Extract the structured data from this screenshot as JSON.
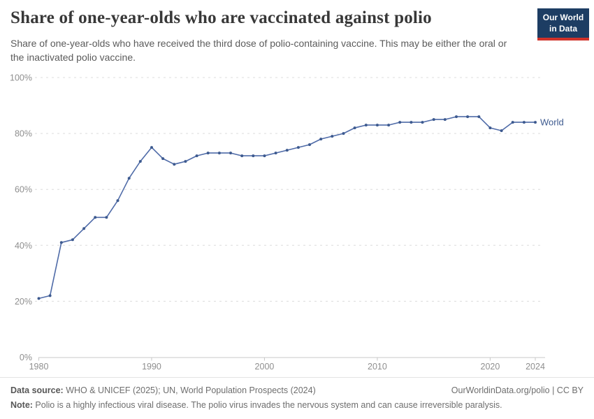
{
  "header": {
    "title": "Share of one-year-olds who are vaccinated against polio",
    "subtitle": "Share of one-year-olds who have received the third dose of polio-containing vaccine. This may be either the oral or the inactivated polio vaccine.",
    "logo": {
      "line1": "Our World",
      "line2": "in Data"
    }
  },
  "chart_data": {
    "type": "line",
    "title": "Share of one-year-olds who are vaccinated against polio",
    "x": [
      1980,
      1981,
      1982,
      1983,
      1984,
      1985,
      1986,
      1987,
      1988,
      1989,
      1990,
      1991,
      1992,
      1993,
      1994,
      1995,
      1996,
      1997,
      1998,
      1999,
      2000,
      2001,
      2002,
      2003,
      2004,
      2005,
      2006,
      2007,
      2008,
      2009,
      2010,
      2011,
      2012,
      2013,
      2014,
      2015,
      2016,
      2017,
      2018,
      2019,
      2020,
      2021,
      2022,
      2023,
      2024
    ],
    "series": [
      {
        "name": "World",
        "values": [
          21,
          22,
          41,
          42,
          46,
          50,
          50,
          56,
          64,
          70,
          75,
          71,
          69,
          70,
          72,
          73,
          73,
          73,
          72,
          72,
          72,
          73,
          74,
          75,
          76,
          78,
          79,
          80,
          82,
          83,
          83,
          83,
          84,
          84,
          84,
          85,
          85,
          86,
          86,
          86,
          82,
          81,
          84,
          84,
          84
        ]
      }
    ],
    "xlim": [
      1980,
      2024
    ],
    "ylim": [
      0,
      100
    ],
    "xticks": [
      1980,
      1990,
      2000,
      2010,
      2020,
      2024
    ],
    "yticks": [
      0,
      20,
      40,
      60,
      80,
      100
    ],
    "unit": "%",
    "grid": "horizontal-dashed",
    "legend_position": "end-of-line-label",
    "colors": {
      "line": "#4f6ba8",
      "marker": "#3d5a8f",
      "label": "#3d5a8f",
      "axis_text": "#8f8f8f",
      "grid": "#dcdcdc",
      "axis": "#c8c8c8"
    }
  },
  "footer": {
    "datasource_label": "Data source:",
    "datasource_text": " WHO & UNICEF (2025); UN, World Population Prospects (2024)",
    "link_text": "OurWorldinData.org/polio | CC BY",
    "note_label": "Note:",
    "note_text": " Polio is a highly infectious viral disease. The polio virus invades the nervous system and can cause irreversible paralysis."
  }
}
